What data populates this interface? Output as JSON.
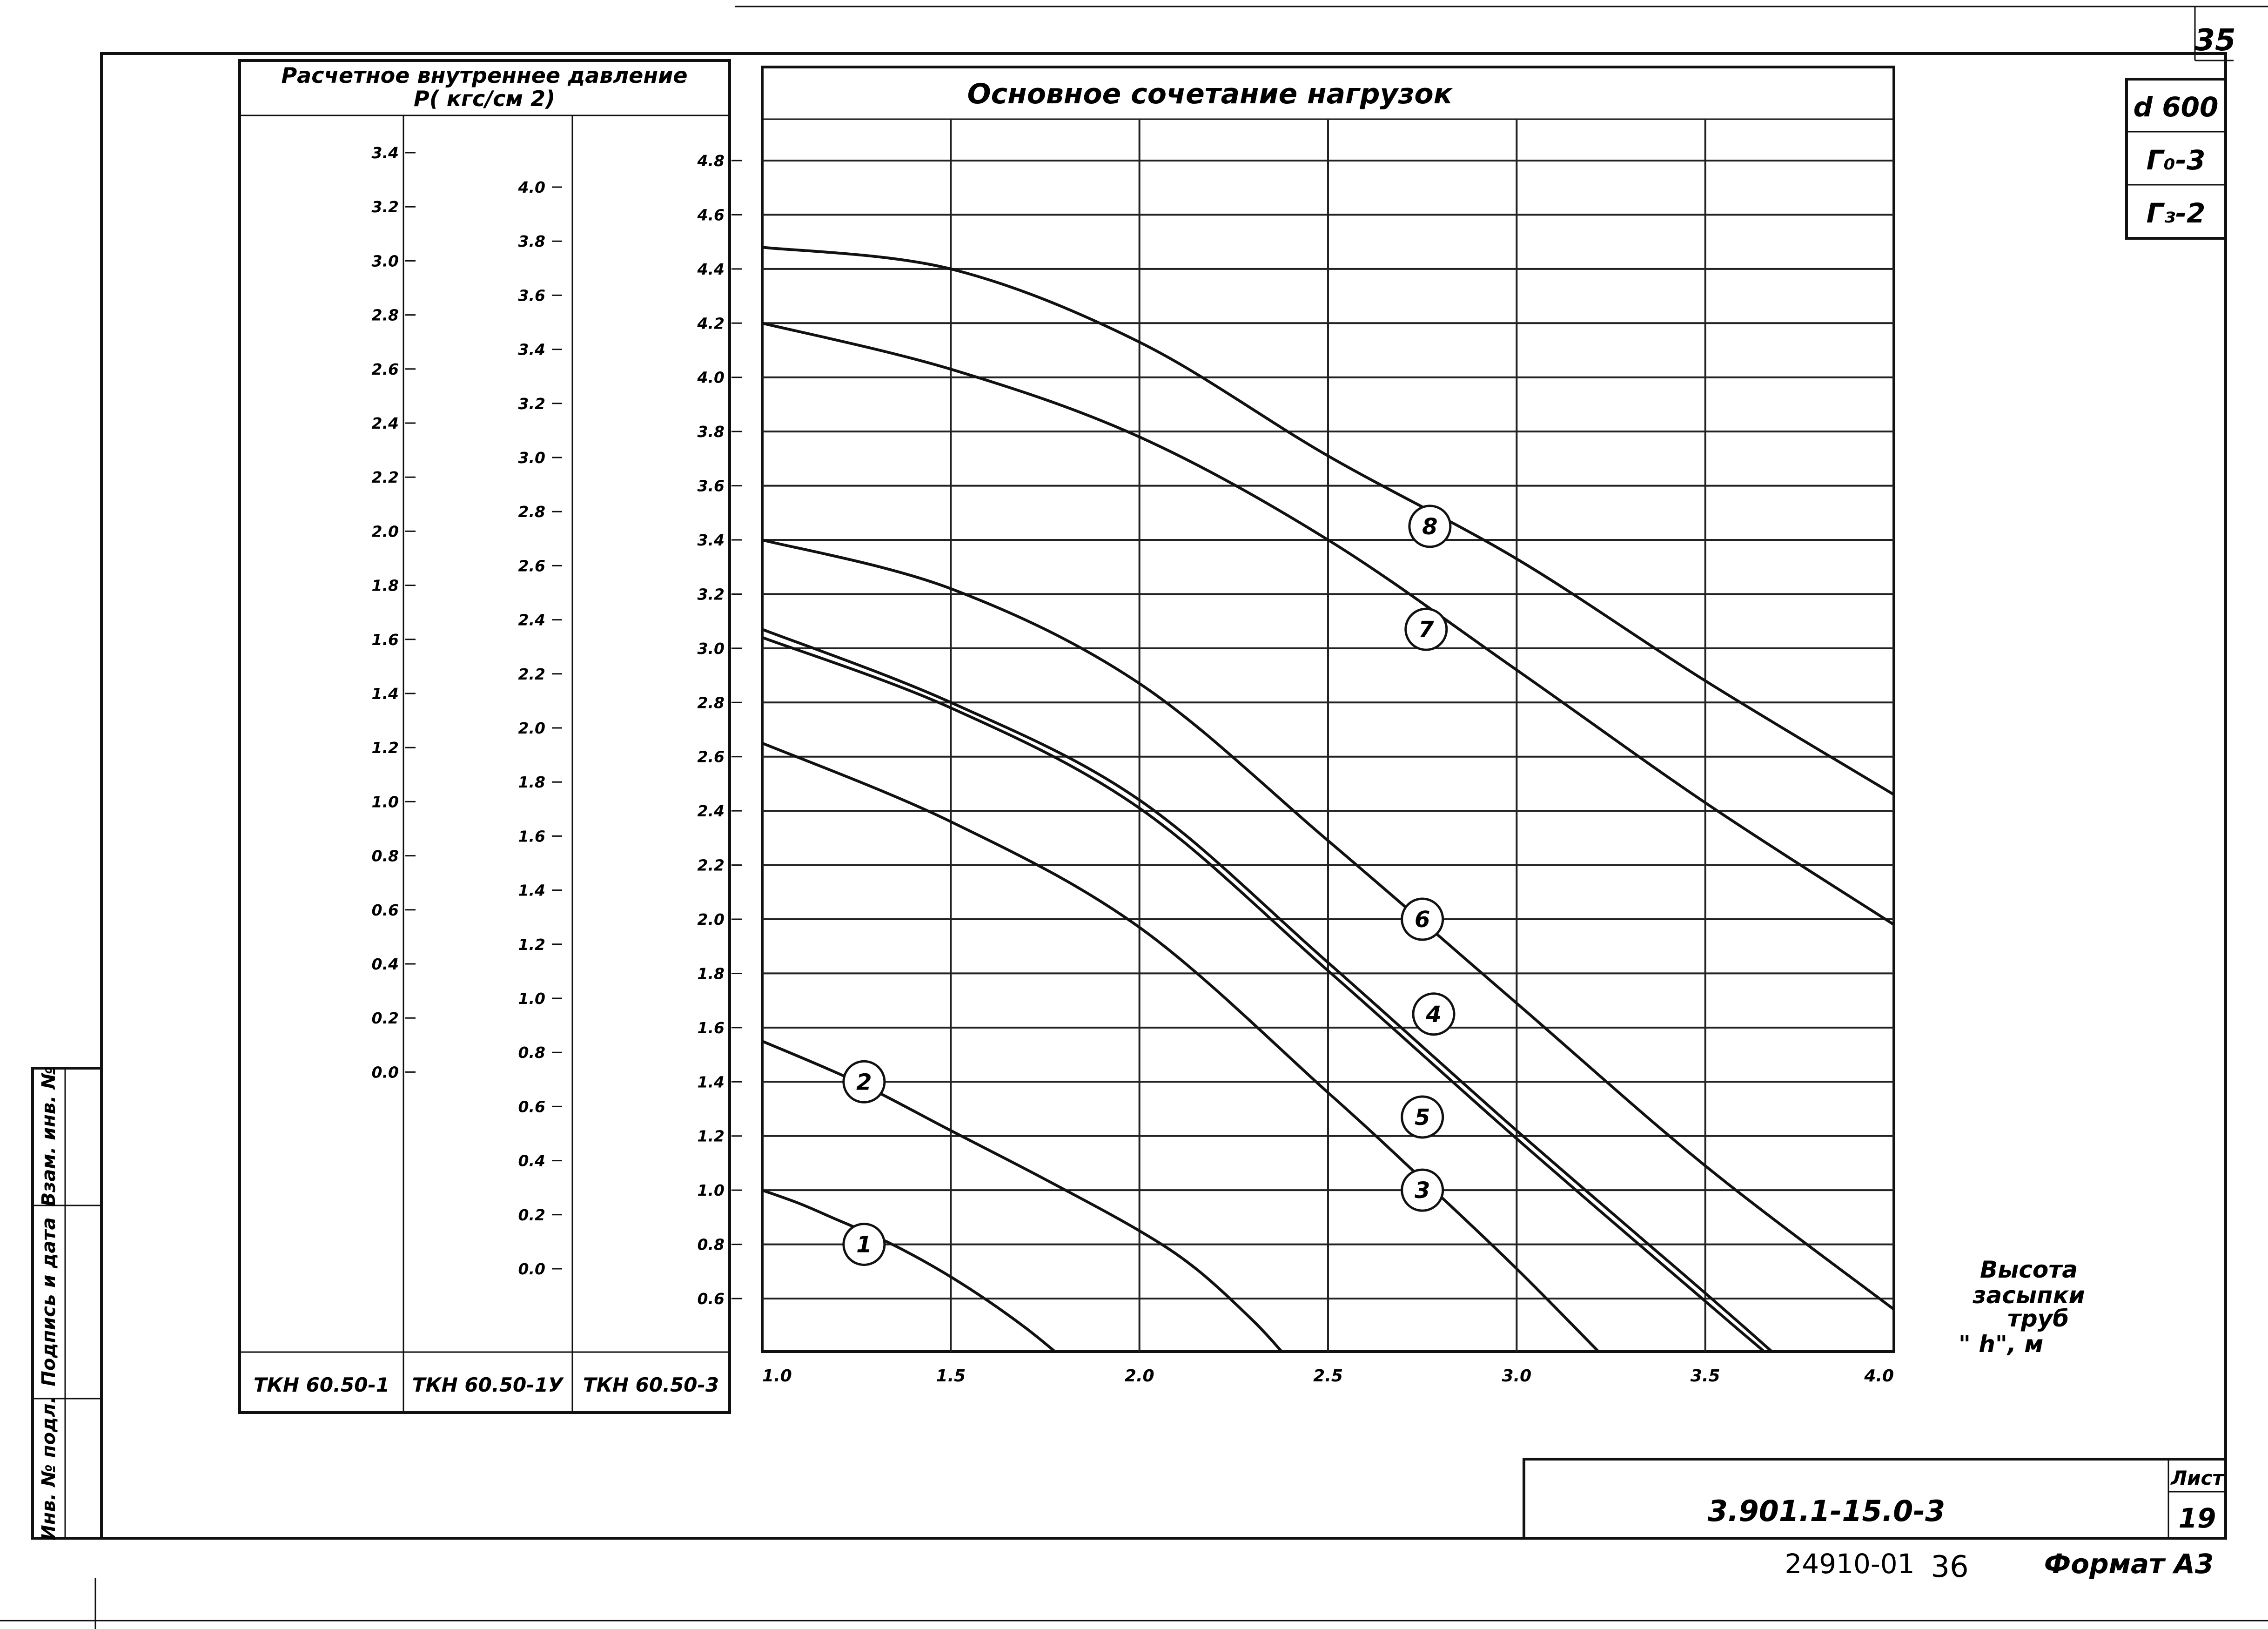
{
  "sheet_number_top": "35",
  "stamps": [
    "d 600",
    "Г₀-3",
    "Г₃-2"
  ],
  "side_stamp": {
    "inv_vzam": "Взам. инв. №",
    "podpis_data": "Подпись и дата",
    "inv_podl": "Инв. № подл."
  },
  "pressure_table": {
    "header_line1": "Расчетное внутреннее давление",
    "header_line2": "P( кгс/см 2)",
    "columns": [
      {
        "label": "ТКН 60.50-1",
        "ticks": [
          "3.4",
          "3.2",
          "3.0",
          "2.8",
          "2.6",
          "2.4",
          "2.2",
          "2.0",
          "1.8",
          "1.6",
          "1.4",
          "1.2",
          "1.0",
          "0.8",
          "0.6",
          "0.4",
          "0.2",
          "0.0"
        ]
      },
      {
        "label": "ТКН 60.50-1У",
        "ticks": [
          "4.0",
          "3.8",
          "3.6",
          "3.4",
          "3.2",
          "3.0",
          "2.8",
          "2.6",
          "2.4",
          "2.2",
          "2.0",
          "1.8",
          "1.6",
          "1.4",
          "1.2",
          "1.0",
          "0.8",
          "0.6",
          "0.4",
          "0.2",
          "0.0"
        ]
      },
      {
        "label": "ТКН 60.50-3",
        "ticks": [
          "4.8",
          "4.6",
          "4.4",
          "4.2",
          "4.0",
          "3.8",
          "3.6",
          "3.4",
          "3.2",
          "3.0",
          "2.8",
          "2.6",
          "2.4",
          "2.2",
          "2.0",
          "1.8",
          "1.6",
          "1.4",
          "1.2",
          "1.0",
          "0.8",
          "0.6"
        ]
      }
    ]
  },
  "chart_data": {
    "type": "line",
    "title": "Основное сочетание нагрузок",
    "xlabel": "Высота засыпки труб \"h\", м",
    "xlabel_lines": [
      "Высота",
      "засыпки",
      "труб",
      "\" h\", м"
    ],
    "ylabel": "Расчетное внутреннее давление P( кгс/см 2)",
    "x_ticks": [
      "1.0",
      "1.5",
      "2.0",
      "2.5",
      "3.0",
      "3.5",
      "4.0"
    ],
    "xlim": [
      1.0,
      4.0
    ],
    "ylim": [
      0.55,
      4.95
    ],
    "y_scale_reference": "ТКН 60.50-3",
    "grid": true,
    "series": [
      {
        "name": "1",
        "x": [
          1.0,
          1.1,
          1.2,
          1.3,
          1.4,
          1.5,
          1.6,
          1.7,
          1.78
        ],
        "y": [
          1.0,
          0.95,
          0.89,
          0.83,
          0.76,
          0.68,
          0.59,
          0.49,
          0.4
        ]
      },
      {
        "name": "2",
        "x": [
          1.0,
          1.25,
          1.5,
          1.75,
          2.0,
          2.15,
          2.3,
          2.38
        ],
        "y": [
          1.55,
          1.4,
          1.22,
          1.04,
          0.85,
          0.71,
          0.52,
          0.4
        ]
      },
      {
        "name": "3",
        "x": [
          1.0,
          1.5,
          2.0,
          2.5,
          2.75,
          3.0,
          3.22
        ],
        "y": [
          2.65,
          2.36,
          1.97,
          1.36,
          1.04,
          0.71,
          0.4
        ]
      },
      {
        "name": "4",
        "x": [
          1.0,
          1.5,
          2.0,
          2.5,
          3.0,
          3.5,
          3.68
        ],
        "y": [
          3.07,
          2.8,
          2.44,
          1.84,
          1.22,
          0.62,
          0.4
        ]
      },
      {
        "name": "5",
        "x": [
          1.0,
          1.5,
          2.0,
          2.5,
          3.0,
          3.5,
          3.66
        ],
        "y": [
          3.04,
          2.78,
          2.41,
          1.81,
          1.19,
          0.59,
          0.4
        ]
      },
      {
        "name": "6",
        "x": [
          1.0,
          1.5,
          2.0,
          2.5,
          3.0,
          3.5,
          4.0
        ],
        "y": [
          3.4,
          3.22,
          2.87,
          2.29,
          1.69,
          1.09,
          0.56
        ]
      },
      {
        "name": "7",
        "x": [
          1.0,
          1.5,
          2.0,
          2.5,
          3.0,
          3.5,
          4.0
        ],
        "y": [
          4.2,
          4.03,
          3.78,
          3.4,
          2.92,
          2.43,
          1.98
        ]
      },
      {
        "name": "8",
        "x": [
          1.0,
          1.5,
          2.0,
          2.5,
          3.0,
          3.5,
          4.0
        ],
        "y": [
          4.48,
          4.4,
          4.13,
          3.71,
          3.33,
          2.88,
          2.46
        ]
      }
    ],
    "curve_labels": [
      {
        "name": "1",
        "x": 1.27,
        "y": 0.8
      },
      {
        "name": "2",
        "x": 1.27,
        "y": 1.4
      },
      {
        "name": "3",
        "x": 2.75,
        "y": 1.0
      },
      {
        "name": "4",
        "x": 2.78,
        "y": 1.65
      },
      {
        "name": "5",
        "x": 2.75,
        "y": 1.27
      },
      {
        "name": "6",
        "x": 2.75,
        "y": 2.0
      },
      {
        "name": "7",
        "x": 2.76,
        "y": 3.07
      },
      {
        "name": "8",
        "x": 2.77,
        "y": 3.45
      }
    ]
  },
  "title_block": {
    "doc_code": "3.901.1-15.0-3",
    "sheet_label": "Лист",
    "sheet_number": "19"
  },
  "footer": {
    "archive_number": "24910-01",
    "page_number": "36",
    "format": "Формат А3"
  }
}
